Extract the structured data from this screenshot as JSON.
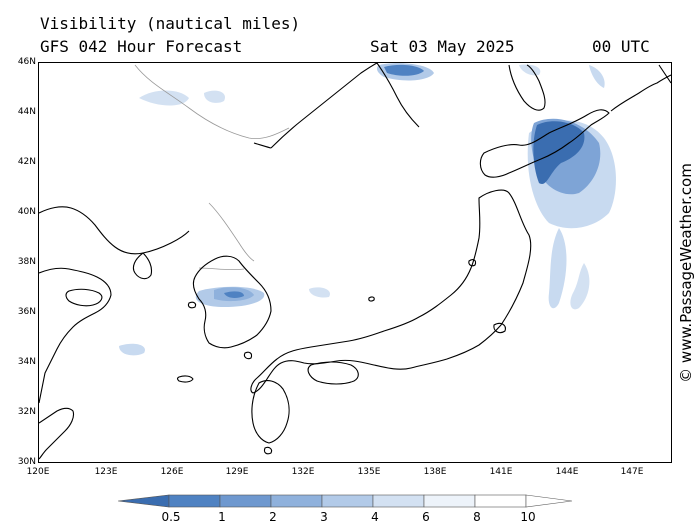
{
  "header": {
    "title": "Visibility (nautical miles)",
    "subtitle": "GFS 042 Hour Forecast",
    "date": "Sat 03 May 2025",
    "time": "00 UTC"
  },
  "axes": {
    "lat_labels": [
      "46N",
      "44N",
      "42N",
      "40N",
      "38N",
      "36N",
      "34N",
      "32N",
      "30N"
    ],
    "lon_labels": [
      "120E",
      "123E",
      "126E",
      "129E",
      "132E",
      "135E",
      "138E",
      "141E",
      "144E",
      "147E"
    ],
    "lat_range": [
      30,
      46
    ],
    "lon_range": [
      120,
      149
    ]
  },
  "legend": {
    "labels": [
      "0.5",
      "1",
      "2",
      "3",
      "4",
      "6",
      "8",
      "10"
    ],
    "colors": [
      "#3a6db0",
      "#4f82c2",
      "#6e98cf",
      "#8fb1dc",
      "#b2cae8",
      "#d3e1f2",
      "#edf3fa",
      "#ffffff"
    ]
  },
  "watermark": "© www.PassageWeather.com",
  "colors": {
    "coast": "#000000",
    "border": "#999999",
    "fog_dark": "#3a6db0",
    "fog_mid": "#7ea4d6",
    "fog_light": "#c8daf0"
  }
}
